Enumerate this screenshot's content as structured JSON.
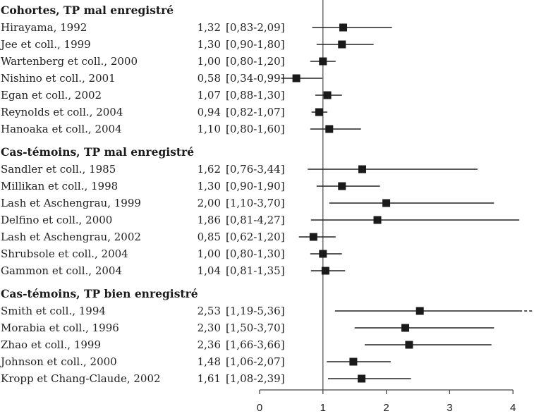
{
  "chart_data": {
    "type": "forest",
    "title": "",
    "xlabel": "",
    "ylabel": "",
    "xlim": [
      0,
      4
    ],
    "x_ticks": [
      0,
      1,
      2,
      3,
      4
    ],
    "x_tick_labels": [
      "0",
      "1",
      "2",
      "3",
      "4"
    ],
    "reference_line": 1,
    "grid": false,
    "groups": [
      {
        "header": "Cohortes, TP mal enregistré",
        "studies": [
          {
            "name": "Hirayama, 1992",
            "or_label": "1,32",
            "ci_label": "[0,83-2,09]",
            "or": 1.32,
            "low": 0.83,
            "high": 2.09
          },
          {
            "name": "Jee et coll., 1999",
            "or_label": "1,30",
            "ci_label": "[0,90-1,80]",
            "or": 1.3,
            "low": 0.9,
            "high": 1.8
          },
          {
            "name": "Wartenberg et coll., 2000",
            "or_label": "1,00",
            "ci_label": "[0,80-1,20]",
            "or": 1.0,
            "low": 0.8,
            "high": 1.2
          },
          {
            "name": "Nishino et coll., 2001",
            "or_label": "0,58",
            "ci_label": "[0,34-0,99]",
            "or": 0.58,
            "low": 0.34,
            "high": 0.99
          },
          {
            "name": "Egan et coll., 2002",
            "or_label": "1,07",
            "ci_label": "[0,88-1,30]",
            "or": 1.07,
            "low": 0.88,
            "high": 1.3
          },
          {
            "name": "Reynolds et coll., 2004",
            "or_label": "0,94",
            "ci_label": "[0,82-1,07]",
            "or": 0.94,
            "low": 0.82,
            "high": 1.07
          },
          {
            "name": "Hanoaka et coll., 2004",
            "or_label": "1,10",
            "ci_label": "[0,80-1,60]",
            "or": 1.1,
            "low": 0.8,
            "high": 1.6
          }
        ]
      },
      {
        "header": "Cas-témoins, TP mal enregistré",
        "studies": [
          {
            "name": "Sandler et coll., 1985",
            "or_label": "1,62",
            "ci_label": "[0,76-3,44]",
            "or": 1.62,
            "low": 0.76,
            "high": 3.44
          },
          {
            "name": "Millikan et coll., 1998",
            "or_label": "1,30",
            "ci_label": "[0,90-1,90]",
            "or": 1.3,
            "low": 0.9,
            "high": 1.9
          },
          {
            "name": "Lash et Aschengrau, 1999",
            "or_label": "2,00",
            "ci_label": "[1,10-3,70]",
            "or": 2.0,
            "low": 1.1,
            "high": 3.7
          },
          {
            "name": "Delfino et coll., 2000",
            "or_label": "1,86",
            "ci_label": "[0,81-4,27]",
            "or": 1.86,
            "low": 0.81,
            "high": 4.27
          },
          {
            "name": "Lash et Aschengrau, 2002",
            "or_label": "0,85",
            "ci_label": "[0,62-1,20]",
            "or": 0.85,
            "low": 0.62,
            "high": 1.2
          },
          {
            "name": "Shrubsole et coll., 2004",
            "or_label": "1,00",
            "ci_label": "[0,80-1,30]",
            "or": 1.0,
            "low": 0.8,
            "high": 1.3
          },
          {
            "name": "Gammon et coll., 2004",
            "or_label": "1,04",
            "ci_label": "[0,81-1,35]",
            "or": 1.04,
            "low": 0.81,
            "high": 1.35
          }
        ]
      },
      {
        "header": "Cas-témoins, TP bien enregistré",
        "studies": [
          {
            "name": "Smith et coll., 1994",
            "or_label": "2,53",
            "ci_label": "[1,19-5,36]",
            "or": 2.53,
            "low": 1.19,
            "high": 5.36
          },
          {
            "name": "Morabia et coll., 1996",
            "or_label": "2,30",
            "ci_label": "[1,50-3,70]",
            "or": 2.3,
            "low": 1.5,
            "high": 3.7
          },
          {
            "name": "Zhao et coll., 1999",
            "or_label": "2,36",
            "ci_label": "[1,66-3,66]",
            "or": 2.36,
            "low": 1.66,
            "high": 3.66
          },
          {
            "name": "Johnson et coll., 2000",
            "or_label": "1,48",
            "ci_label": "[1,06-2,07]",
            "or": 1.48,
            "low": 1.06,
            "high": 2.07
          },
          {
            "name": "Kropp et Chang-Claude, 2002",
            "or_label": "1,61",
            "ci_label": "[1,08-2,39]",
            "or": 1.61,
            "low": 1.08,
            "high": 2.39
          }
        ]
      }
    ],
    "colors": {
      "marker": "#1a1a1a",
      "line": "#222222",
      "axis": "#444444",
      "reference": "#555555"
    }
  }
}
